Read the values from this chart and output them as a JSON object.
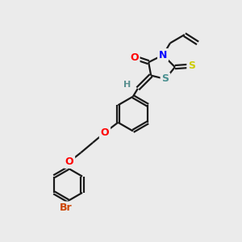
{
  "bg_color": "#ebebeb",
  "bond_color": "#1a1a1a",
  "bond_width": 1.6,
  "atom_colors": {
    "O": "#ff0000",
    "N": "#0000ff",
    "S_thioxo": "#cccc00",
    "S_ring": "#4a9090",
    "Br": "#cc4400",
    "H": "#5a9090",
    "C": "#1a1a1a"
  },
  "font_size_atom": 9,
  "fig_size": [
    3.0,
    3.0
  ],
  "dpi": 100
}
